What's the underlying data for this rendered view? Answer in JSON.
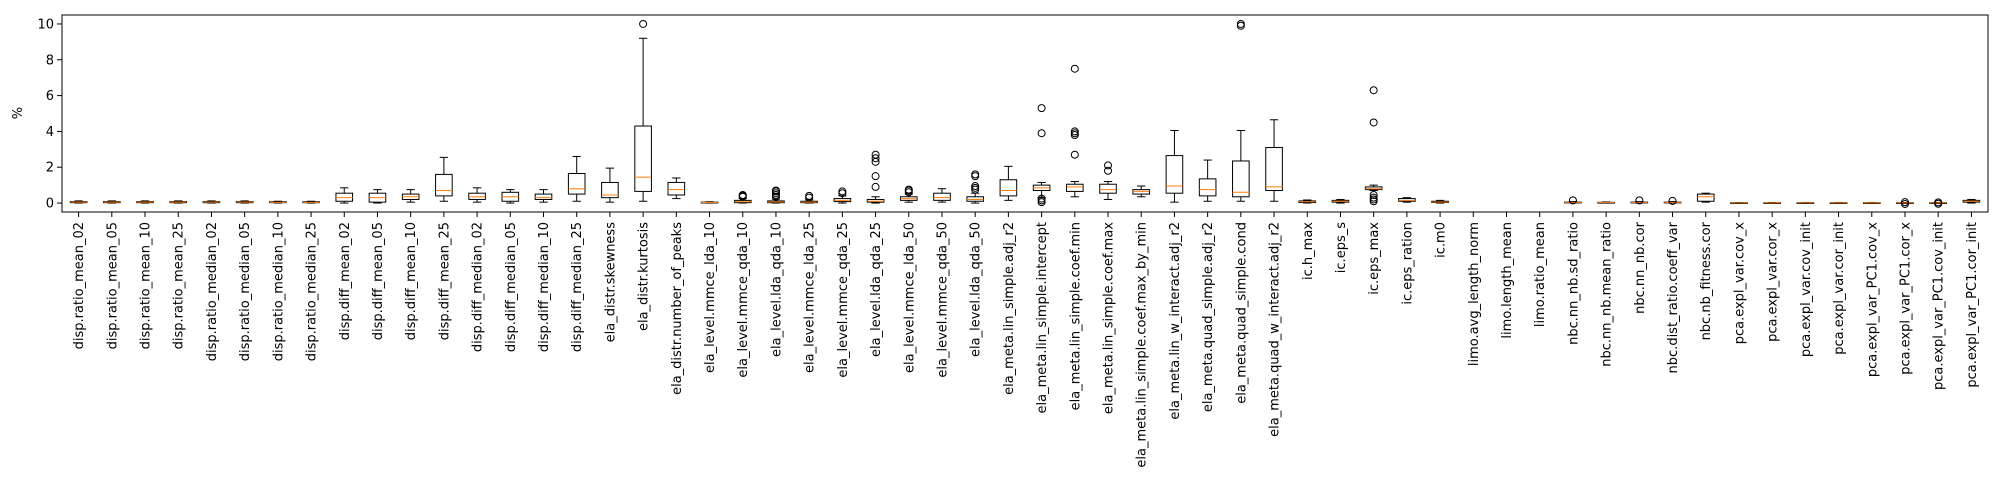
{
  "chart_data": {
    "type": "box",
    "ylabel": "%",
    "ylim": [
      -0.5,
      10.5
    ],
    "yticks": [
      0,
      2,
      4,
      6,
      8,
      10
    ],
    "grid": false,
    "colors": {
      "box": "#000000",
      "median": "#ff7f0e",
      "flier": "#000000"
    },
    "categories": [
      "disp.ratio_mean_02",
      "disp.ratio_mean_05",
      "disp.ratio_mean_10",
      "disp.ratio_mean_25",
      "disp.ratio_median_02",
      "disp.ratio_median_05",
      "disp.ratio_median_10",
      "disp.ratio_median_25",
      "disp.diff_mean_02",
      "disp.diff_mean_05",
      "disp.diff_mean_10",
      "disp.diff_mean_25",
      "disp.diff_median_02",
      "disp.diff_median_05",
      "disp.diff_median_10",
      "disp.diff_median_25",
      "ela_distr.skewness",
      "ela_distr.kurtosis",
      "ela_distr.number_of_peaks",
      "ela_level.mmce_lda_10",
      "ela_level.mmce_qda_10",
      "ela_level.lda_qda_10",
      "ela_level.mmce_lda_25",
      "ela_level.mmce_qda_25",
      "ela_level.lda_qda_25",
      "ela_level.mmce_lda_50",
      "ela_level.mmce_qda_50",
      "ela_level.lda_qda_50",
      "ela_meta.lin_simple.adj_r2",
      "ela_meta.lin_simple.intercept",
      "ela_meta.lin_simple.coef.min",
      "ela_meta.lin_simple.coef.max",
      "ela_meta.lin_simple.coef.max_by_min",
      "ela_meta.lin_w_interact.adj_r2",
      "ela_meta.quad_simple.adj_r2",
      "ela_meta.quad_simple.cond",
      "ela_meta.quad_w_interact.adj_r2",
      "ic.h_max",
      "ic.eps_s",
      "ic.eps_max",
      "ic.eps_ration",
      "ic.m0",
      "limo.avg_length_norm",
      "limo.length_mean",
      "limo.ratio_mean",
      "nbc.nn_nb.sd_ratio",
      "nbc.nn_nb.mean_ratio",
      "nbc.nn_nb.cor",
      "nbc.dist_ratio.coeff_var",
      "nbc.nb_fitness.cor",
      "pca.expl_var.cov_x",
      "pca.expl_var.cor_x",
      "pca.expl_var.cov_init",
      "pca.expl_var.cor_init",
      "pca.expl_var_PC1.cov_x",
      "pca.expl_var_PC1.cor_x",
      "pca.expl_var_PC1.cov_init",
      "pca.expl_var_PC1.cor_init"
    ],
    "boxes": [
      {
        "wl": 0.0,
        "q1": 0.02,
        "med": 0.05,
        "q3": 0.08,
        "wh": 0.12,
        "fliers": []
      },
      {
        "wl": 0.0,
        "q1": 0.02,
        "med": 0.05,
        "q3": 0.08,
        "wh": 0.12,
        "fliers": []
      },
      {
        "wl": 0.0,
        "q1": 0.02,
        "med": 0.05,
        "q3": 0.08,
        "wh": 0.12,
        "fliers": []
      },
      {
        "wl": 0.0,
        "q1": 0.02,
        "med": 0.05,
        "q3": 0.08,
        "wh": 0.12,
        "fliers": []
      },
      {
        "wl": 0.0,
        "q1": 0.02,
        "med": 0.05,
        "q3": 0.08,
        "wh": 0.12,
        "fliers": []
      },
      {
        "wl": 0.0,
        "q1": 0.02,
        "med": 0.05,
        "q3": 0.08,
        "wh": 0.12,
        "fliers": []
      },
      {
        "wl": 0.0,
        "q1": 0.02,
        "med": 0.04,
        "q3": 0.07,
        "wh": 0.1,
        "fliers": []
      },
      {
        "wl": 0.0,
        "q1": 0.02,
        "med": 0.04,
        "q3": 0.07,
        "wh": 0.1,
        "fliers": []
      },
      {
        "wl": 0.0,
        "q1": 0.1,
        "med": 0.3,
        "q3": 0.55,
        "wh": 0.85,
        "fliers": []
      },
      {
        "wl": 0.0,
        "q1": 0.05,
        "med": 0.3,
        "q3": 0.55,
        "wh": 0.75,
        "fliers": []
      },
      {
        "wl": 0.05,
        "q1": 0.2,
        "med": 0.35,
        "q3": 0.5,
        "wh": 0.75,
        "fliers": []
      },
      {
        "wl": 0.1,
        "q1": 0.4,
        "med": 0.7,
        "q3": 1.6,
        "wh": 2.55,
        "fliers": []
      },
      {
        "wl": 0.05,
        "q1": 0.2,
        "med": 0.35,
        "q3": 0.55,
        "wh": 0.85,
        "fliers": []
      },
      {
        "wl": 0.0,
        "q1": 0.1,
        "med": 0.35,
        "q3": 0.6,
        "wh": 0.75,
        "fliers": []
      },
      {
        "wl": 0.05,
        "q1": 0.2,
        "med": 0.3,
        "q3": 0.5,
        "wh": 0.75,
        "fliers": []
      },
      {
        "wl": 0.1,
        "q1": 0.5,
        "med": 0.8,
        "q3": 1.65,
        "wh": 2.6,
        "fliers": []
      },
      {
        "wl": 0.05,
        "q1": 0.3,
        "med": 0.45,
        "q3": 1.15,
        "wh": 1.95,
        "fliers": []
      },
      {
        "wl": 0.1,
        "q1": 0.65,
        "med": 1.45,
        "q3": 4.3,
        "wh": 9.2,
        "fliers": [
          10.0
        ]
      },
      {
        "wl": 0.25,
        "q1": 0.45,
        "med": 0.75,
        "q3": 1.15,
        "wh": 1.4,
        "fliers": []
      },
      {
        "wl": 0.0,
        "q1": 0.01,
        "med": 0.03,
        "q3": 0.05,
        "wh": 0.07,
        "fliers": []
      },
      {
        "wl": 0.0,
        "q1": 0.02,
        "med": 0.08,
        "q3": 0.15,
        "wh": 0.25,
        "fliers": [
          0.35,
          0.4,
          0.45
        ]
      },
      {
        "wl": 0.0,
        "q1": 0.02,
        "med": 0.06,
        "q3": 0.12,
        "wh": 0.22,
        "fliers": [
          0.35,
          0.45,
          0.55,
          0.65,
          0.7
        ]
      },
      {
        "wl": 0.0,
        "q1": 0.02,
        "med": 0.05,
        "q3": 0.1,
        "wh": 0.18,
        "fliers": [
          0.3,
          0.4
        ]
      },
      {
        "wl": 0.0,
        "q1": 0.08,
        "med": 0.15,
        "q3": 0.25,
        "wh": 0.4,
        "fliers": [
          0.55,
          0.65
        ]
      },
      {
        "wl": 0.0,
        "q1": 0.05,
        "med": 0.1,
        "q3": 0.2,
        "wh": 0.35,
        "fliers": [
          0.9,
          1.5,
          2.3,
          2.5,
          2.7
        ]
      },
      {
        "wl": 0.05,
        "q1": 0.15,
        "med": 0.25,
        "q3": 0.35,
        "wh": 0.5,
        "fliers": [
          0.6,
          0.7,
          0.75
        ]
      },
      {
        "wl": 0.05,
        "q1": 0.15,
        "med": 0.3,
        "q3": 0.55,
        "wh": 0.8,
        "fliers": []
      },
      {
        "wl": 0.0,
        "q1": 0.1,
        "med": 0.2,
        "q3": 0.35,
        "wh": 0.55,
        "fliers": [
          0.75,
          0.85,
          0.95,
          1.5,
          1.6
        ]
      },
      {
        "wl": 0.15,
        "q1": 0.4,
        "med": 0.7,
        "q3": 1.3,
        "wh": 2.05,
        "fliers": []
      },
      {
        "wl": 0.3,
        "q1": 0.7,
        "med": 0.85,
        "q3": 1.0,
        "wh": 1.15,
        "fliers": [
          0.05,
          0.15,
          0.25,
          3.9,
          5.3
        ]
      },
      {
        "wl": 0.35,
        "q1": 0.65,
        "med": 0.9,
        "q3": 1.05,
        "wh": 1.2,
        "fliers": [
          2.7,
          3.8,
          3.9,
          4.0,
          7.5
        ]
      },
      {
        "wl": 0.2,
        "q1": 0.55,
        "med": 0.75,
        "q3": 1.05,
        "wh": 1.2,
        "fliers": [
          1.8,
          2.1
        ]
      },
      {
        "wl": 0.35,
        "q1": 0.5,
        "med": 0.65,
        "q3": 0.75,
        "wh": 0.95,
        "fliers": []
      },
      {
        "wl": 0.05,
        "q1": 0.55,
        "med": 0.95,
        "q3": 2.65,
        "wh": 4.05,
        "fliers": []
      },
      {
        "wl": 0.1,
        "q1": 0.4,
        "med": 0.75,
        "q3": 1.35,
        "wh": 2.4,
        "fliers": []
      },
      {
        "wl": 0.1,
        "q1": 0.35,
        "med": 0.6,
        "q3": 2.35,
        "wh": 4.05,
        "fliers": [
          9.9,
          10.0
        ]
      },
      {
        "wl": 0.1,
        "q1": 0.7,
        "med": 0.9,
        "q3": 3.1,
        "wh": 4.65,
        "fliers": []
      },
      {
        "wl": 0.0,
        "q1": 0.03,
        "med": 0.07,
        "q3": 0.12,
        "wh": 0.17,
        "fliers": []
      },
      {
        "wl": 0.0,
        "q1": 0.05,
        "med": 0.1,
        "q3": 0.15,
        "wh": 0.2,
        "fliers": []
      },
      {
        "wl": 0.7,
        "q1": 0.75,
        "med": 0.8,
        "q3": 0.9,
        "wh": 1.0,
        "fliers": [
          0.1,
          0.2,
          0.3,
          0.45,
          4.5,
          6.3
        ]
      },
      {
        "wl": 0.05,
        "q1": 0.1,
        "med": 0.15,
        "q3": 0.25,
        "wh": 0.3,
        "fliers": []
      },
      {
        "wl": 0.0,
        "q1": 0.03,
        "med": 0.06,
        "q3": 0.1,
        "wh": 0.15,
        "fliers": []
      },
      {
        "empty": true
      },
      {
        "empty": true
      },
      {
        "empty": true
      },
      {
        "wl": 0.0,
        "q1": 0.01,
        "med": 0.02,
        "q3": 0.05,
        "wh": 0.08,
        "fliers": [
          0.15
        ]
      },
      {
        "wl": 0.0,
        "q1": 0.01,
        "med": 0.02,
        "q3": 0.04,
        "wh": 0.06,
        "fliers": []
      },
      {
        "wl": 0.0,
        "q1": 0.01,
        "med": 0.02,
        "q3": 0.05,
        "wh": 0.08,
        "fliers": [
          0.15
        ]
      },
      {
        "wl": 0.0,
        "q1": 0.01,
        "med": 0.02,
        "q3": 0.05,
        "wh": 0.08,
        "fliers": [
          0.12
        ]
      },
      {
        "wl": 0.05,
        "q1": 0.1,
        "med": 0.35,
        "q3": 0.5,
        "wh": 0.55,
        "fliers": []
      },
      {
        "wl": 0.0,
        "q1": 0.0,
        "med": 0.01,
        "q3": 0.02,
        "wh": 0.03,
        "fliers": []
      },
      {
        "wl": 0.0,
        "q1": 0.0,
        "med": 0.01,
        "q3": 0.02,
        "wh": 0.03,
        "fliers": []
      },
      {
        "wl": 0.0,
        "q1": 0.0,
        "med": 0.01,
        "q3": 0.02,
        "wh": 0.03,
        "fliers": []
      },
      {
        "wl": 0.0,
        "q1": 0.0,
        "med": 0.01,
        "q3": 0.02,
        "wh": 0.03,
        "fliers": []
      },
      {
        "wl": 0.0,
        "q1": 0.0,
        "med": 0.01,
        "q3": 0.02,
        "wh": 0.03,
        "fliers": []
      },
      {
        "wl": 0.0,
        "q1": 0.0,
        "med": 0.01,
        "q3": 0.02,
        "wh": 0.03,
        "fliers": [
          0.05,
          -0.05
        ]
      },
      {
        "wl": 0.0,
        "q1": 0.0,
        "med": 0.01,
        "q3": 0.02,
        "wh": 0.03,
        "fliers": [
          0.04,
          -0.04
        ]
      },
      {
        "wl": 0.0,
        "q1": 0.05,
        "med": 0.1,
        "q3": 0.15,
        "wh": 0.2,
        "fliers": []
      }
    ]
  }
}
